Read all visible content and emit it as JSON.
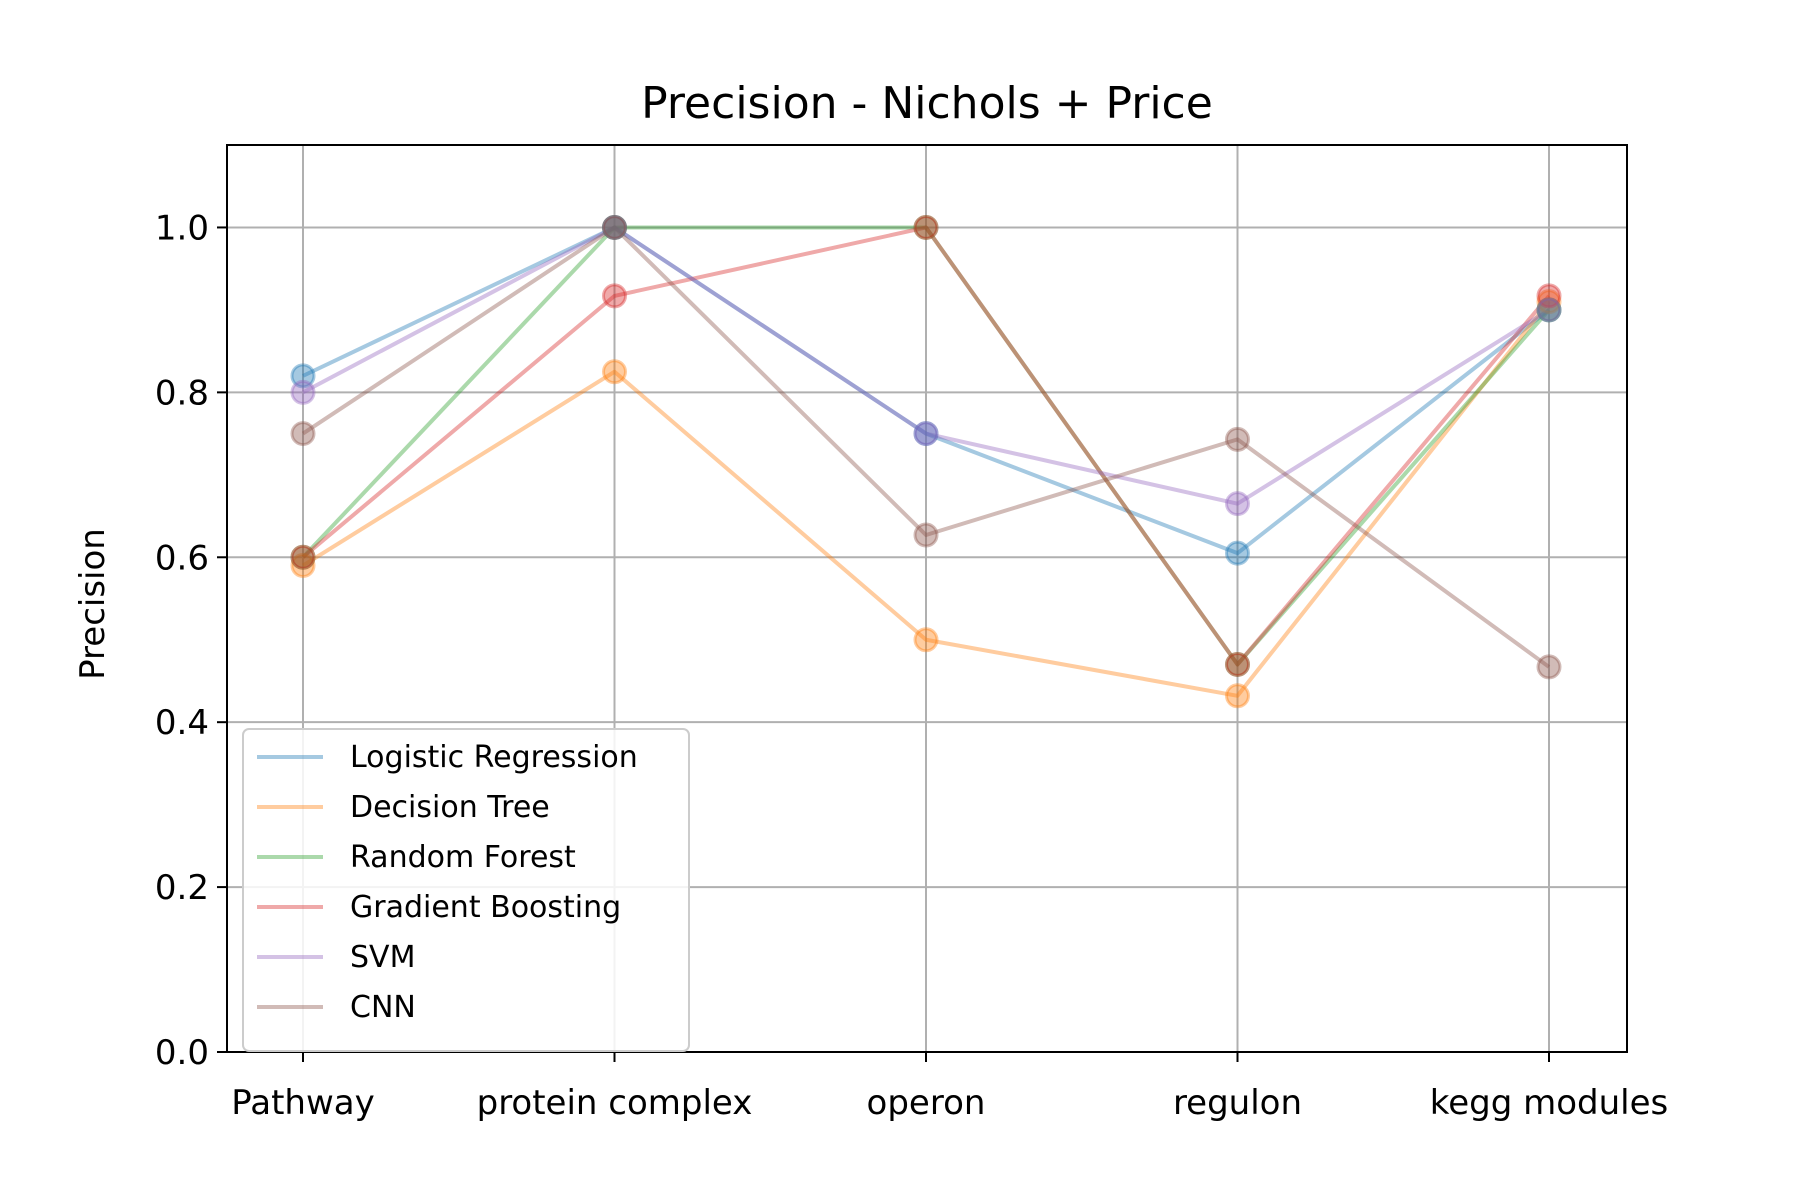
{
  "chart_data": {
    "type": "line",
    "title": "Precision - Nichols + Price",
    "xlabel": "",
    "ylabel": "Precision",
    "categories": [
      "Pathway",
      "protein complex",
      "operon",
      "regulon",
      "kegg modules"
    ],
    "ylim": [
      0.0,
      1.1
    ],
    "yticks": [
      "0.0",
      "0.2",
      "0.4",
      "0.6",
      "0.8",
      "1.0"
    ],
    "grid": true,
    "legend_position": "lower-left",
    "series": [
      {
        "name": "Logistic Regression",
        "color": "#1f77b4",
        "values": [
          0.82,
          1.0,
          0.75,
          0.605,
          0.9
        ]
      },
      {
        "name": "Decision Tree",
        "color": "#ff7f0e",
        "values": [
          0.59,
          0.825,
          0.5,
          0.432,
          0.91
        ]
      },
      {
        "name": "Random Forest",
        "color": "#2ca02c",
        "values": [
          0.6,
          1.0,
          1.0,
          0.47,
          0.9
        ]
      },
      {
        "name": "Gradient Boosting",
        "color": "#d62728",
        "values": [
          0.6,
          0.917,
          1.0,
          0.47,
          0.917
        ]
      },
      {
        "name": "SVM",
        "color": "#9467bd",
        "values": [
          0.8,
          1.0,
          0.75,
          0.665,
          0.9
        ]
      },
      {
        "name": "CNN",
        "color": "#8c564b",
        "values": [
          0.75,
          1.0,
          0.627,
          0.743,
          0.467
        ]
      }
    ]
  }
}
